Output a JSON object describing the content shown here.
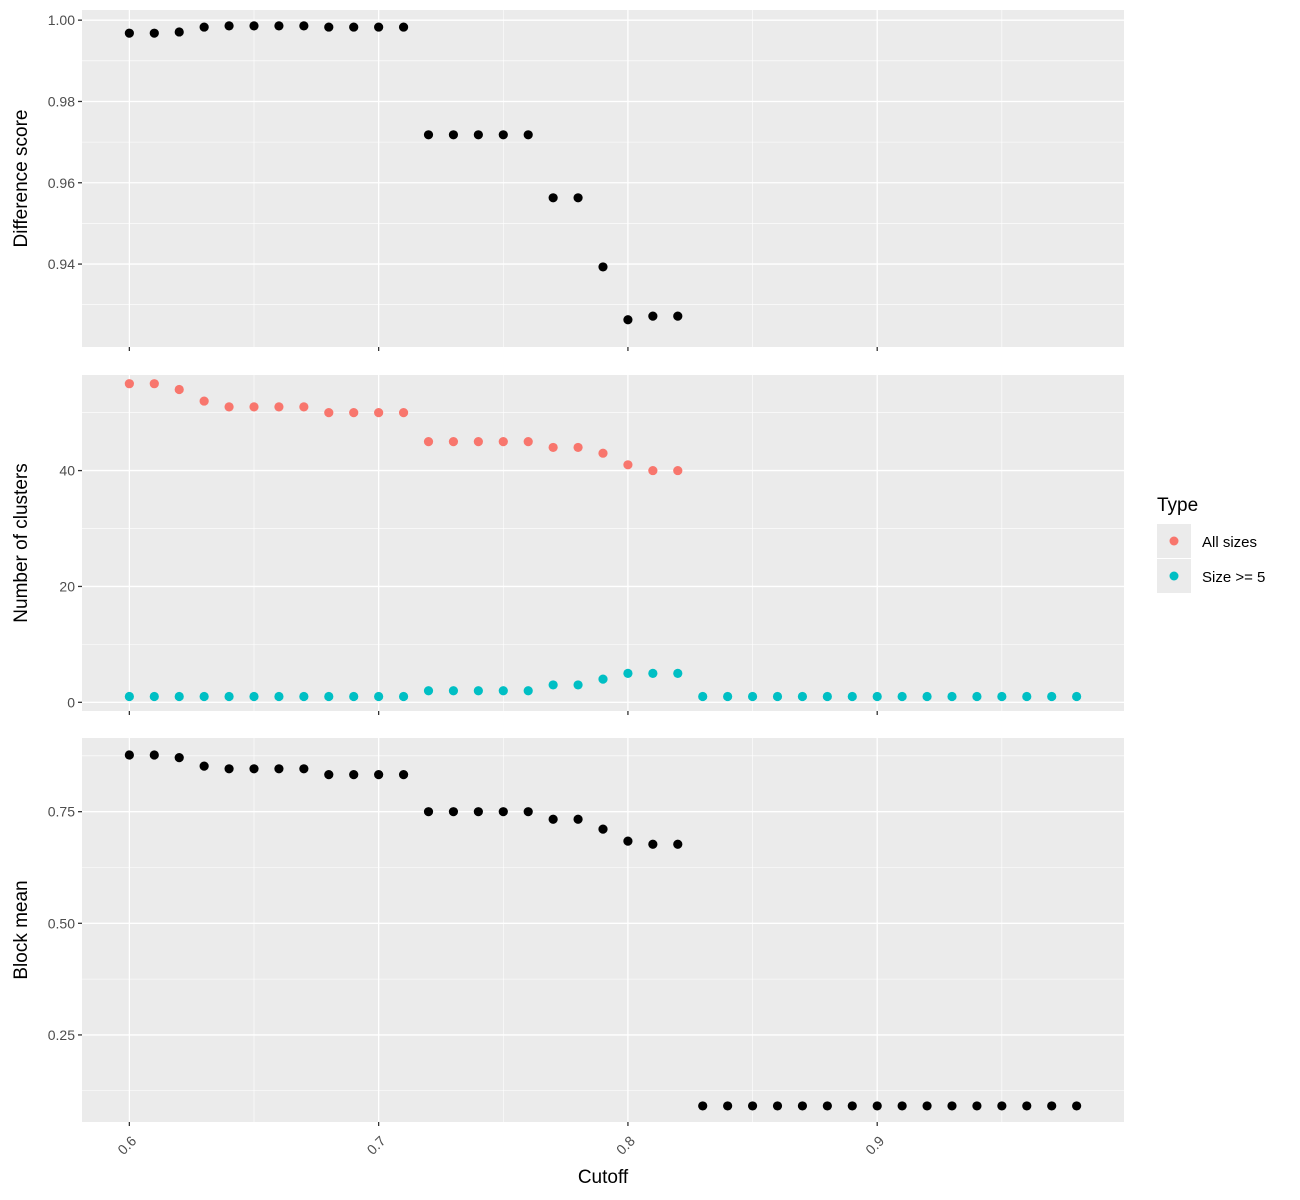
{
  "chart_data": [
    {
      "type": "scatter",
      "ylabel": "Difference score",
      "xlabel": "",
      "xlim": [
        0.581,
        0.999
      ],
      "ylim": [
        0.9196,
        1.0025
      ],
      "x_ticks": [
        0.6,
        0.7,
        0.8,
        0.9
      ],
      "y_ticks": [
        0.94,
        0.96,
        0.98,
        1.0
      ],
      "y_tick_labels": [
        "0.94",
        "0.96",
        "0.98",
        "1.00"
      ],
      "grid": true,
      "series": [
        {
          "color": "#000000",
          "x": [
            0.6,
            0.61,
            0.62,
            0.63,
            0.64,
            0.65,
            0.66,
            0.67,
            0.68,
            0.69,
            0.7,
            0.71,
            0.72,
            0.73,
            0.74,
            0.75,
            0.76,
            0.77,
            0.78,
            0.79,
            0.8,
            0.81,
            0.82
          ],
          "values": [
            0.9968,
            0.9968,
            0.9971,
            0.9983,
            0.9986,
            0.9986,
            0.9986,
            0.9986,
            0.9983,
            0.9983,
            0.9983,
            0.9983,
            0.9718,
            0.9718,
            0.9718,
            0.9718,
            0.9718,
            0.9563,
            0.9563,
            0.9393,
            0.9263,
            0.9272,
            0.9272
          ]
        }
      ]
    },
    {
      "type": "scatter",
      "ylabel": "Number of clusters",
      "xlabel": "",
      "xlim": [
        0.581,
        0.999
      ],
      "ylim": [
        -1.5,
        56.5
      ],
      "x_ticks": [
        0.6,
        0.7,
        0.8,
        0.9
      ],
      "y_ticks": [
        0,
        20,
        40
      ],
      "y_tick_labels": [
        "0",
        "20",
        "40"
      ],
      "grid": true,
      "series": [
        {
          "name": "All sizes",
          "color": "#F8766D",
          "x": [
            0.6,
            0.61,
            0.62,
            0.63,
            0.64,
            0.65,
            0.66,
            0.67,
            0.68,
            0.69,
            0.7,
            0.71,
            0.72,
            0.73,
            0.74,
            0.75,
            0.76,
            0.77,
            0.78,
            0.79,
            0.8,
            0.81,
            0.82
          ],
          "values": [
            55,
            55,
            54,
            52,
            51,
            51,
            51,
            51,
            50,
            50,
            50,
            50,
            45,
            45,
            45,
            45,
            45,
            44,
            44,
            43,
            41,
            40,
            40
          ]
        },
        {
          "name": "Size >= 5",
          "color": "#00BFC4",
          "x": [
            0.6,
            0.61,
            0.62,
            0.63,
            0.64,
            0.65,
            0.66,
            0.67,
            0.68,
            0.69,
            0.7,
            0.71,
            0.72,
            0.73,
            0.74,
            0.75,
            0.76,
            0.77,
            0.78,
            0.79,
            0.8,
            0.81,
            0.82,
            0.83,
            0.84,
            0.85,
            0.86,
            0.87,
            0.88,
            0.89,
            0.9,
            0.91,
            0.92,
            0.93,
            0.94,
            0.95,
            0.96,
            0.97,
            0.98
          ],
          "values": [
            1,
            1,
            1,
            1,
            1,
            1,
            1,
            1,
            1,
            1,
            1,
            1,
            2,
            2,
            2,
            2,
            2,
            3,
            3,
            4,
            5,
            5,
            5,
            1,
            1,
            1,
            1,
            1,
            1,
            1,
            1,
            1,
            1,
            1,
            1,
            1,
            1,
            1,
            1
          ]
        }
      ]
    },
    {
      "type": "scatter",
      "ylabel": "Block mean",
      "xlabel": "Cutoff",
      "xlim": [
        0.581,
        0.999
      ],
      "ylim": [
        0.055,
        0.915
      ],
      "x_ticks": [
        0.6,
        0.7,
        0.8,
        0.9
      ],
      "x_tick_labels": [
        "0.6",
        "0.7",
        "0.8",
        "0.9"
      ],
      "y_ticks": [
        0.25,
        0.5,
        0.75
      ],
      "y_tick_labels": [
        "0.25",
        "0.50",
        "0.75"
      ],
      "grid": true,
      "series": [
        {
          "color": "#000000",
          "x": [
            0.6,
            0.61,
            0.62,
            0.63,
            0.64,
            0.65,
            0.66,
            0.67,
            0.68,
            0.69,
            0.7,
            0.71,
            0.72,
            0.73,
            0.74,
            0.75,
            0.76,
            0.77,
            0.78,
            0.79,
            0.8,
            0.81,
            0.82,
            0.83,
            0.84,
            0.85,
            0.86,
            0.87,
            0.88,
            0.89,
            0.9,
            0.91,
            0.92,
            0.93,
            0.94,
            0.95,
            0.96,
            0.97,
            0.98
          ],
          "values": [
            0.877,
            0.877,
            0.871,
            0.852,
            0.846,
            0.846,
            0.846,
            0.846,
            0.833,
            0.833,
            0.833,
            0.833,
            0.75,
            0.75,
            0.75,
            0.75,
            0.75,
            0.733,
            0.733,
            0.711,
            0.684,
            0.677,
            0.677,
            0.091,
            0.091,
            0.091,
            0.091,
            0.091,
            0.091,
            0.091,
            0.091,
            0.091,
            0.091,
            0.091,
            0.091,
            0.091,
            0.091,
            0.091,
            0.091
          ]
        }
      ]
    }
  ],
  "legend": {
    "title": "Type",
    "placement": "right",
    "items": [
      {
        "label": "All sizes",
        "color": "#F8766D"
      },
      {
        "label": "Size >= 5",
        "color": "#00BFC4"
      }
    ]
  },
  "colors": {
    "panel_background": "#EBEBEB",
    "grid": "#FFFFFF",
    "point_default": "#000000"
  }
}
